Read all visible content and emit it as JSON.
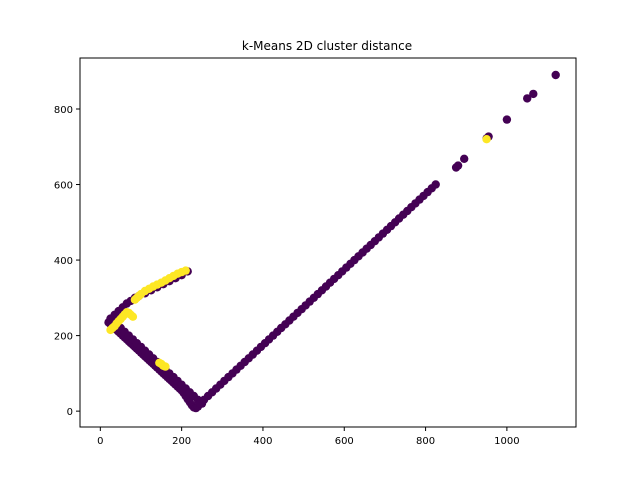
{
  "chart_data": {
    "type": "scatter",
    "title": "k-Means 2D cluster distance",
    "xlabel": "",
    "ylabel": "",
    "xlim": [
      -50,
      1170
    ],
    "ylim": [
      -42,
      935
    ],
    "grid": false,
    "legend": "none",
    "x_ticks": [
      0,
      200,
      400,
      600,
      800,
      1000
    ],
    "x_tick_labels": [
      "0",
      "200",
      "400",
      "600",
      "800",
      "1000"
    ],
    "y_ticks": [
      0,
      200,
      400,
      600,
      800
    ],
    "y_tick_labels": [
      "0",
      "200",
      "400",
      "600",
      "800"
    ],
    "colors": {
      "cluster_0": "#440154",
      "cluster_1": "#fde725"
    },
    "series": [
      {
        "cluster": 0,
        "color": "#440154",
        "description_points": "dense band from (20,235) down-right to (230,10), then a straight line up to (1120,890); also points along the upper-left arm",
        "points": [
          [
            20,
            235
          ],
          [
            25,
            230
          ],
          [
            30,
            225
          ],
          [
            35,
            220
          ],
          [
            40,
            215
          ],
          [
            45,
            210
          ],
          [
            50,
            205
          ],
          [
            55,
            200
          ],
          [
            60,
            195
          ],
          [
            65,
            190
          ],
          [
            70,
            185
          ],
          [
            75,
            180
          ],
          [
            80,
            175
          ],
          [
            85,
            170
          ],
          [
            90,
            165
          ],
          [
            95,
            160
          ],
          [
            100,
            155
          ],
          [
            105,
            150
          ],
          [
            110,
            145
          ],
          [
            115,
            140
          ],
          [
            120,
            135
          ],
          [
            125,
            130
          ],
          [
            130,
            125
          ],
          [
            135,
            120
          ],
          [
            140,
            115
          ],
          [
            145,
            110
          ],
          [
            150,
            105
          ],
          [
            155,
            100
          ],
          [
            160,
            95
          ],
          [
            165,
            90
          ],
          [
            170,
            85
          ],
          [
            175,
            80
          ],
          [
            180,
            75
          ],
          [
            185,
            70
          ],
          [
            190,
            65
          ],
          [
            195,
            60
          ],
          [
            200,
            55
          ],
          [
            205,
            48
          ],
          [
            210,
            40
          ],
          [
            215,
            32
          ],
          [
            220,
            24
          ],
          [
            225,
            16
          ],
          [
            230,
            10
          ],
          [
            235,
            8
          ],
          [
            240,
            12
          ],
          [
            30,
            240
          ],
          [
            40,
            230
          ],
          [
            50,
            220
          ],
          [
            60,
            210
          ],
          [
            70,
            200
          ],
          [
            80,
            190
          ],
          [
            90,
            180
          ],
          [
            100,
            170
          ],
          [
            110,
            160
          ],
          [
            120,
            150
          ],
          [
            130,
            140
          ],
          [
            140,
            130
          ],
          [
            150,
            120
          ],
          [
            160,
            110
          ],
          [
            170,
            100
          ],
          [
            180,
            90
          ],
          [
            190,
            80
          ],
          [
            200,
            70
          ],
          [
            210,
            60
          ],
          [
            220,
            50
          ],
          [
            230,
            40
          ],
          [
            240,
            30
          ],
          [
            250,
            20
          ],
          [
            25,
            245
          ],
          [
            35,
            255
          ],
          [
            45,
            265
          ],
          [
            55,
            275
          ],
          [
            65,
            285
          ],
          [
            75,
            292
          ],
          [
            85,
            300
          ],
          [
            95,
            305
          ],
          [
            110,
            312
          ],
          [
            125,
            320
          ],
          [
            140,
            328
          ],
          [
            155,
            336
          ],
          [
            170,
            344
          ],
          [
            185,
            352
          ],
          [
            200,
            360
          ],
          [
            215,
            370
          ],
          [
            245,
            20
          ],
          [
            255,
            30
          ],
          [
            265,
            40
          ],
          [
            275,
            50
          ],
          [
            285,
            60
          ],
          [
            295,
            70
          ],
          [
            305,
            80
          ],
          [
            315,
            90
          ],
          [
            325,
            100
          ],
          [
            335,
            110
          ],
          [
            345,
            120
          ],
          [
            355,
            130
          ],
          [
            365,
            140
          ],
          [
            375,
            150
          ],
          [
            385,
            160
          ],
          [
            395,
            170
          ],
          [
            405,
            180
          ],
          [
            415,
            190
          ],
          [
            425,
            200
          ],
          [
            435,
            210
          ],
          [
            445,
            220
          ],
          [
            455,
            230
          ],
          [
            465,
            240
          ],
          [
            475,
            250
          ],
          [
            485,
            260
          ],
          [
            495,
            270
          ],
          [
            505,
            280
          ],
          [
            515,
            290
          ],
          [
            525,
            300
          ],
          [
            535,
            310
          ],
          [
            545,
            320
          ],
          [
            555,
            330
          ],
          [
            565,
            340
          ],
          [
            575,
            350
          ],
          [
            585,
            360
          ],
          [
            595,
            370
          ],
          [
            605,
            380
          ],
          [
            615,
            390
          ],
          [
            625,
            400
          ],
          [
            635,
            410
          ],
          [
            645,
            420
          ],
          [
            655,
            430
          ],
          [
            665,
            440
          ],
          [
            675,
            450
          ],
          [
            685,
            460
          ],
          [
            695,
            470
          ],
          [
            705,
            480
          ],
          [
            715,
            490
          ],
          [
            725,
            500
          ],
          [
            735,
            510
          ],
          [
            745,
            520
          ],
          [
            755,
            530
          ],
          [
            765,
            540
          ],
          [
            775,
            550
          ],
          [
            785,
            560
          ],
          [
            795,
            570
          ],
          [
            805,
            580
          ],
          [
            815,
            590
          ],
          [
            825,
            600
          ],
          [
            875,
            645
          ],
          [
            880,
            650
          ],
          [
            895,
            668
          ],
          [
            950,
            722
          ],
          [
            955,
            727
          ],
          [
            1000,
            772
          ],
          [
            1050,
            828
          ],
          [
            1065,
            840
          ],
          [
            1120,
            890
          ]
        ]
      },
      {
        "cluster": 1,
        "color": "#fde725",
        "points": [
          [
            25,
            215
          ],
          [
            30,
            220
          ],
          [
            35,
            225
          ],
          [
            40,
            232
          ],
          [
            45,
            238
          ],
          [
            50,
            244
          ],
          [
            55,
            250
          ],
          [
            60,
            256
          ],
          [
            65,
            262
          ],
          [
            70,
            260
          ],
          [
            75,
            255
          ],
          [
            80,
            250
          ],
          [
            85,
            295
          ],
          [
            90,
            300
          ],
          [
            95,
            305
          ],
          [
            100,
            310
          ],
          [
            110,
            318
          ],
          [
            120,
            324
          ],
          [
            130,
            330
          ],
          [
            140,
            335
          ],
          [
            150,
            340
          ],
          [
            160,
            346
          ],
          [
            170,
            352
          ],
          [
            180,
            358
          ],
          [
            190,
            364
          ],
          [
            200,
            368
          ],
          [
            210,
            372
          ],
          [
            150,
            125
          ],
          [
            155,
            120
          ],
          [
            160,
            118
          ],
          [
            145,
            128
          ],
          [
            950,
            720
          ]
        ]
      }
    ]
  }
}
